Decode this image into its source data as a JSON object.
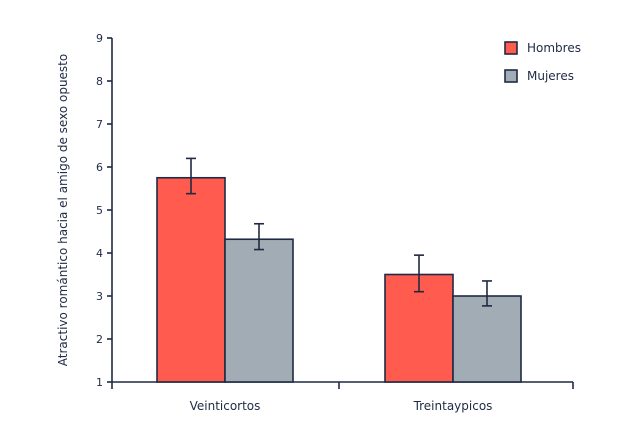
{
  "chart_data": {
    "type": "bar",
    "categories": [
      "Veinticortos",
      "Treintaypicos"
    ],
    "series": [
      {
        "name": "Hombres",
        "values": [
          5.75,
          3.5
        ],
        "error_low": [
          5.38,
          3.1
        ],
        "error_high": [
          6.2,
          3.95
        ],
        "color": "#ff5b4f"
      },
      {
        "name": "Mujeres",
        "values": [
          4.32,
          3.0
        ],
        "error_low": [
          4.08,
          2.77
        ],
        "error_high": [
          4.68,
          3.35
        ],
        "color": "#a2acb4"
      }
    ],
    "ylabel": "Atractivo romántico hacia el amigo de sexo opuesto",
    "ylim": [
      1,
      9
    ],
    "yticks": [
      1,
      2,
      3,
      4,
      5,
      6,
      7,
      8,
      9
    ],
    "grid": false,
    "legend_position": "top-right",
    "axis_color": "#1f2a44"
  }
}
